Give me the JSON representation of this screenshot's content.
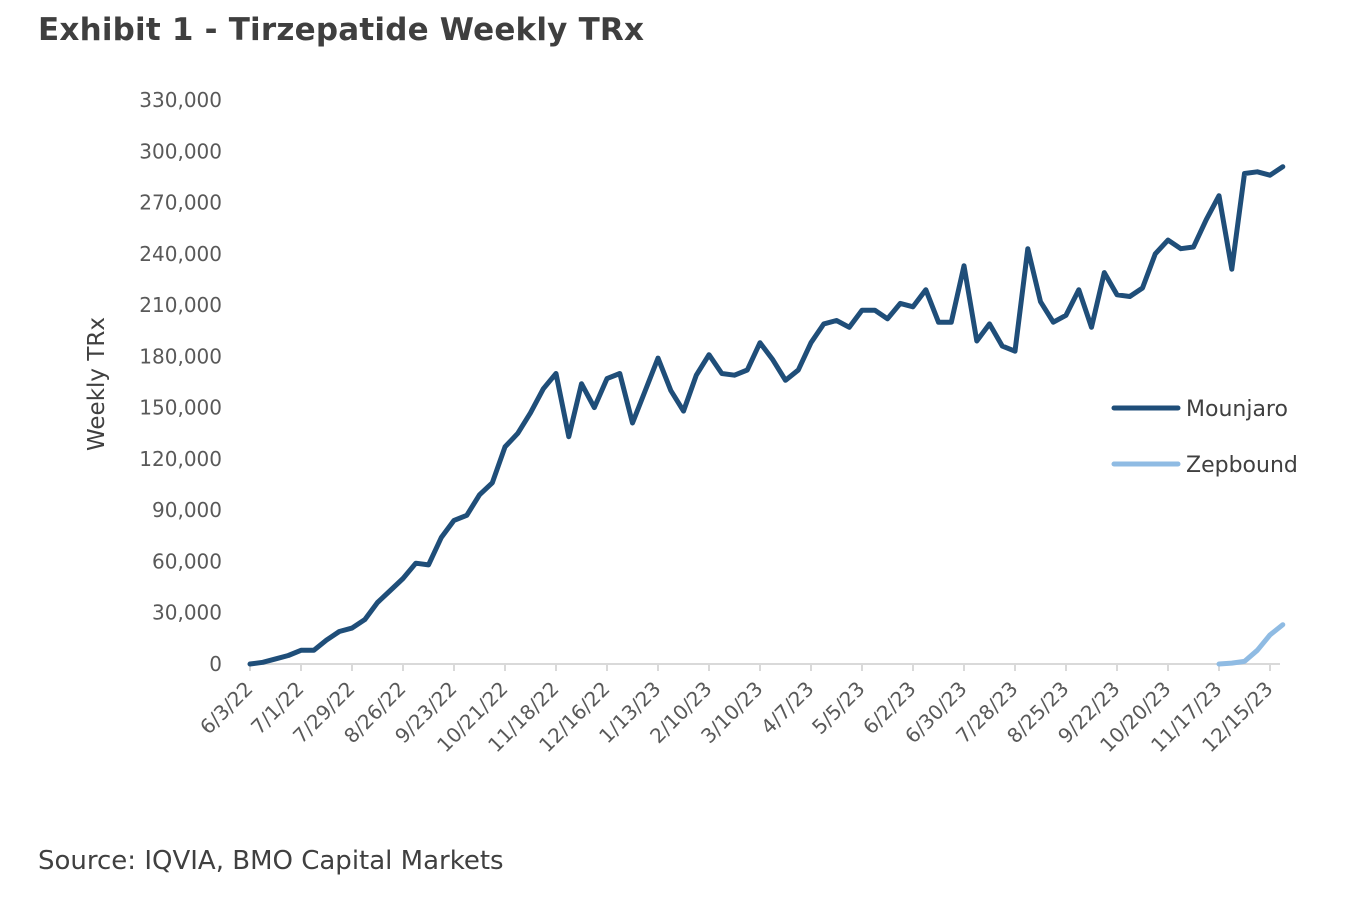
{
  "header": {
    "title": "Exhibit 1 - Tirzepatide Weekly TRx"
  },
  "footer": {
    "source": "Source: IQVIA, BMO Capital Markets"
  },
  "chart_data": {
    "type": "line",
    "title": "Exhibit 1 - Tirzepatide Weekly TRx",
    "xlabel": "",
    "ylabel": "Weekly TRx",
    "ylim": [
      0,
      330000
    ],
    "yticks": [
      0,
      30000,
      60000,
      90000,
      120000,
      150000,
      180000,
      210000,
      240000,
      270000,
      300000,
      330000
    ],
    "ytick_labels": [
      "0",
      "30,000",
      "60,000",
      "90,000",
      "120,000",
      "150,000",
      "180,000",
      "210,000",
      "240,000",
      "270,000",
      "300,000",
      "330,000"
    ],
    "xtick_labels": [
      "6/3/22",
      "7/1/22",
      "7/29/22",
      "8/26/22",
      "9/23/22",
      "10/21/22",
      "11/18/22",
      "12/16/22",
      "1/13/23",
      "2/10/23",
      "3/10/23",
      "4/7/23",
      "5/5/23",
      "6/2/23",
      "6/30/23",
      "7/28/23",
      "8/25/23",
      "9/22/23",
      "10/20/23",
      "11/17/23",
      "12/15/23"
    ],
    "x_interval_weeks": 4,
    "legend_position": "right",
    "series": [
      {
        "name": "Mounjaro",
        "color": "#1f4e79",
        "start_week": 0,
        "values": [
          0,
          1000,
          3000,
          5000,
          8000,
          8000,
          14000,
          19000,
          21000,
          26000,
          36000,
          43000,
          50000,
          59000,
          58000,
          74000,
          84000,
          87000,
          99000,
          106000,
          127000,
          135000,
          147000,
          161000,
          170000,
          133000,
          164000,
          150000,
          167000,
          170000,
          141000,
          160000,
          179000,
          160000,
          148000,
          169000,
          181000,
          170000,
          169000,
          172000,
          188000,
          178000,
          166000,
          172000,
          188000,
          199000,
          201000,
          197000,
          207000,
          207000,
          202000,
          211000,
          209000,
          219000,
          200000,
          200000,
          233000,
          189000,
          199000,
          186000,
          183000,
          243000,
          212000,
          200000,
          204000,
          219000,
          197000,
          229000,
          216000,
          215000,
          220000,
          240000,
          248000,
          243000,
          244000,
          260000,
          274000,
          231000,
          287000,
          288000,
          286000,
          291000
        ]
      },
      {
        "name": "Zepbound",
        "color": "#8fbbe3",
        "start_week": 76,
        "values": [
          0,
          500,
          1500,
          8000,
          17000,
          23000
        ]
      }
    ]
  }
}
